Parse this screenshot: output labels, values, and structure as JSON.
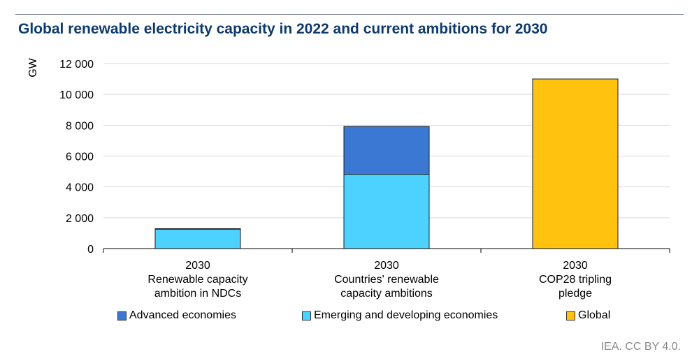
{
  "header": {
    "title": "Global renewable electricity capacity in 2022 and current ambitions for 2030"
  },
  "footer": {
    "credit": "IEA. CC BY 4.0."
  },
  "chart_data": {
    "type": "bar",
    "stacked": true,
    "title": "Global renewable electricity capacity in 2022 and current ambitions for 2030",
    "ylabel": "GW",
    "xlabel": "",
    "ylim": [
      0,
      12000
    ],
    "yticks": [
      0,
      2000,
      4000,
      6000,
      8000,
      10000,
      12000
    ],
    "ytick_labels": [
      "0",
      "2 000",
      "4 000",
      "6 000",
      "8 000",
      "10 000",
      "12 000"
    ],
    "grid": true,
    "legend_position": "bottom",
    "categories": [
      [
        "2030",
        "Renewable capacity",
        "ambition in NDCs"
      ],
      [
        "2030",
        "Countries' renewable",
        "capacity ambitions"
      ],
      [
        "2030",
        "COP28 tripling",
        "pledge"
      ]
    ],
    "series": [
      {
        "name": "Emerging and developing economies",
        "color": "#4dd2ff",
        "values": [
          1260,
          4820,
          0
        ]
      },
      {
        "name": "Advanced economies",
        "color": "#3b78d4",
        "values": [
          30,
          3100,
          0
        ]
      },
      {
        "name": "Global",
        "color": "#ffc20e",
        "values": [
          0,
          0,
          11000
        ]
      }
    ],
    "legend_order": [
      "Advanced economies",
      "Emerging and developing economies",
      "Global"
    ]
  }
}
